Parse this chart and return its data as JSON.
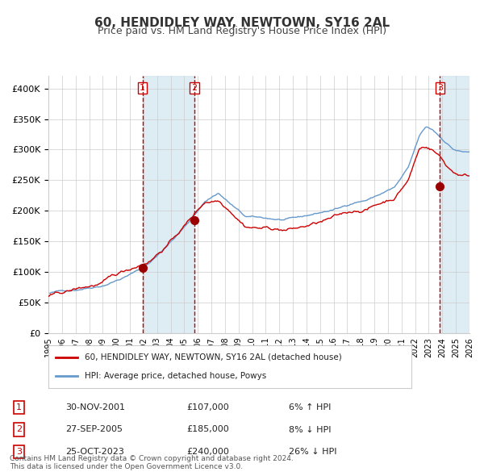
{
  "title": "60, HENDIDLEY WAY, NEWTOWN, SY16 2AL",
  "subtitle": "Price paid vs. HM Land Registry's House Price Index (HPI)",
  "legend_label_red": "60, HENDIDLEY WAY, NEWTOWN, SY16 2AL (detached house)",
  "legend_label_blue": "HPI: Average price, detached house, Powys",
  "footer_line1": "Contains HM Land Registry data © Crown copyright and database right 2024.",
  "footer_line2": "This data is licensed under the Open Government Licence v3.0.",
  "transactions": [
    {
      "num": 1,
      "date": "30-NOV-2001",
      "price": 107000,
      "pct": "6%",
      "dir": "↑",
      "x_year": 2001.92
    },
    {
      "num": 2,
      "date": "27-SEP-2005",
      "price": 185000,
      "pct": "8%",
      "dir": "↓",
      "x_year": 2005.75
    },
    {
      "num": 3,
      "date": "25-OCT-2023",
      "price": 240000,
      "pct": "26%",
      "dir": "↓",
      "x_year": 2023.83
    }
  ],
  "shade_regions": [
    {
      "x_start": 2001.92,
      "x_end": 2005.75
    },
    {
      "x_start": 2023.83,
      "x_end": 2026.0
    }
  ],
  "x_start": 1995.0,
  "x_end": 2026.0,
  "y_min": 0,
  "y_max": 420000,
  "y_ticks": [
    0,
    50000,
    100000,
    150000,
    200000,
    250000,
    300000,
    350000,
    400000
  ],
  "x_ticks": [
    1995,
    1996,
    1997,
    1998,
    1999,
    2000,
    2001,
    2002,
    2003,
    2004,
    2005,
    2006,
    2007,
    2008,
    2009,
    2010,
    2011,
    2012,
    2013,
    2014,
    2015,
    2016,
    2017,
    2018,
    2019,
    2020,
    2021,
    2022,
    2023,
    2024,
    2025,
    2026
  ],
  "red_color": "#cc0000",
  "blue_color": "#6699cc",
  "shade_color": "#d0e4f0",
  "bg_color": "#ffffff",
  "grid_color": "#cccccc"
}
